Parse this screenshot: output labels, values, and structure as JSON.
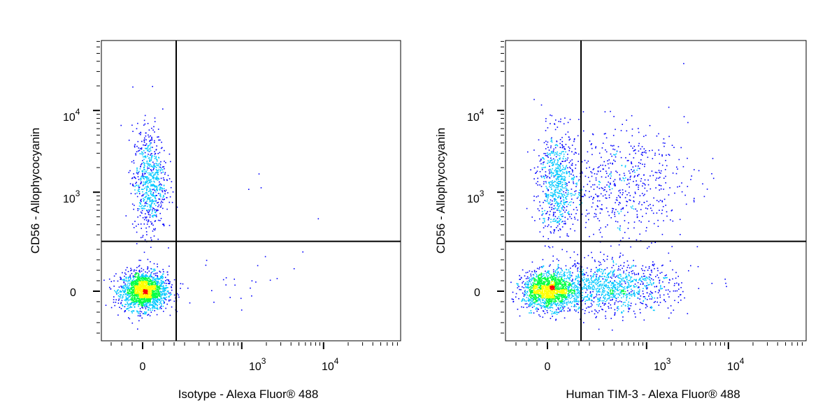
{
  "colors": {
    "density_low": "#0000ff",
    "density_mid_low": "#00c8ff",
    "density_mid": "#00ff40",
    "density_mid_high": "#ffff00",
    "density_high": "#ff0000",
    "gate_line": "#000000",
    "background": "#ffffff"
  },
  "chart_data": [
    {
      "type": "scatter",
      "plot_style": "flow-cytometry density dot plot",
      "title": "",
      "xlabel": "Isotype - Alexa Fluor® 488",
      "ylabel": "CD56 - Allophycocyanin",
      "x_scale": "biexponential",
      "y_scale": "biexponential",
      "x_tick_labels": [
        {
          "value": 0,
          "label": "0"
        },
        {
          "value": 1000,
          "label": "10",
          "exp": "3"
        },
        {
          "value": 10000,
          "label": "10",
          "exp": "4"
        }
      ],
      "y_tick_labels": [
        {
          "value": 0,
          "label": "0"
        },
        {
          "value": 1000,
          "label": "10",
          "exp": "3"
        },
        {
          "value": 10000,
          "label": "10",
          "exp": "4"
        }
      ],
      "gate_x": 160,
      "gate_y": 250,
      "populations": [
        {
          "name": "",
          "center": [
            5,
            3
          ],
          "spread": [
            55,
            45
          ],
          "count": 1800,
          "density": "high"
        },
        {
          "name": "",
          "center": [
            30,
            1400
          ],
          "spread": [
            40,
            2.1
          ],
          "count": 700,
          "density": "low"
        },
        {
          "name": "",
          "center": [
            600,
            20
          ],
          "spread": [
            3.0,
            80
          ],
          "count": 25,
          "density": "low"
        }
      ],
      "outliers": [
        [
          1200,
          1100
        ],
        [
          1600,
          1700
        ],
        [
          1700,
          1150
        ],
        [
          8500,
          480
        ],
        [
          5500,
          190
        ],
        [
          4300,
          110
        ],
        [
          2200,
          55
        ],
        [
          1300,
          -20
        ],
        [
          800,
          60
        ]
      ]
    },
    {
      "type": "scatter",
      "plot_style": "flow-cytometry density dot plot",
      "title": "",
      "xlabel": "Human TIM-3 - Alexa Fluor® 488",
      "ylabel": "CD56 - Allophycocyanin",
      "x_scale": "biexponential",
      "y_scale": "biexponential",
      "x_tick_labels": [
        {
          "value": 0,
          "label": "0"
        },
        {
          "value": 1000,
          "label": "10",
          "exp": "3"
        },
        {
          "value": 10000,
          "label": "10",
          "exp": "4"
        }
      ],
      "y_tick_labels": [
        {
          "value": 0,
          "label": "0"
        },
        {
          "value": 1000,
          "label": "10",
          "exp": "3"
        },
        {
          "value": 10000,
          "label": "10",
          "exp": "4"
        }
      ],
      "gate_x": 160,
      "gate_y": 250,
      "populations": [
        {
          "name": "",
          "center": [
            0,
            5
          ],
          "spread": [
            60,
            45
          ],
          "count": 1500,
          "density": "high"
        },
        {
          "name": "",
          "center": [
            350,
            20
          ],
          "spread": [
            2.5,
            60
          ],
          "count": 1100,
          "density": "mid"
        },
        {
          "name": "",
          "center": [
            40,
            1300
          ],
          "spread": [
            45,
            2.1
          ],
          "count": 650,
          "density": "low"
        },
        {
          "name": "",
          "center": [
            450,
            1300
          ],
          "spread": [
            2.6,
            2.2
          ],
          "count": 600,
          "density": "low"
        }
      ],
      "outliers": [
        [
          3500,
          1600
        ],
        [
          6500,
          1500
        ],
        [
          5000,
          900
        ],
        [
          9000,
          60
        ],
        [
          4200,
          120
        ],
        [
          6200,
          40
        ],
        [
          2600,
          20
        ]
      ]
    }
  ]
}
